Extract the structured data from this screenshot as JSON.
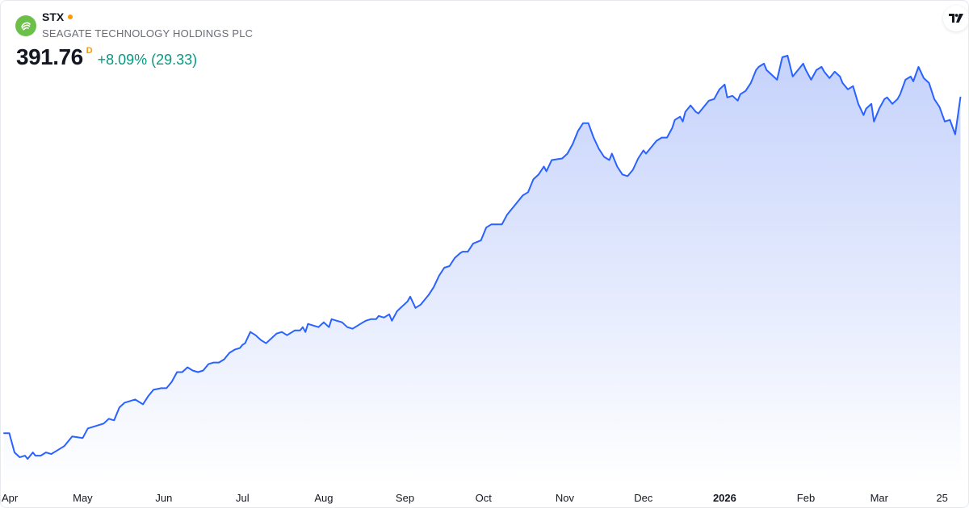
{
  "header": {
    "ticker": "STX",
    "company": "SEAGATE TECHNOLOGY HOLDINGS PLC",
    "price": "391.76",
    "interval": "D",
    "change": "+8.09% (29.33)"
  },
  "icons": {
    "logo": "seagate-logo-icon",
    "brand": "tradingview-logo-icon"
  },
  "colors": {
    "line": "#2962ff",
    "fill_top": "#c5d2fb",
    "fill_bottom": "#ffffff",
    "up": "#089981",
    "status_dot": "#ff9800",
    "logo_bg": "#6cc04a"
  },
  "chart_data": {
    "type": "area",
    "title": "",
    "xlabel": "",
    "ylabel": "",
    "y_axis_shown": false,
    "grid": false,
    "ylim": [
      60,
      330
    ],
    "x_start": "2025-04-01",
    "x_ticks": [
      {
        "label": "Apr",
        "day": 0
      },
      {
        "label": "May",
        "day": 30
      },
      {
        "label": "Jun",
        "day": 61
      },
      {
        "label": "Jul",
        "day": 91
      },
      {
        "label": "Aug",
        "day": 122
      },
      {
        "label": "Sep",
        "day": 153
      },
      {
        "label": "Oct",
        "day": 183
      },
      {
        "label": "Nov",
        "day": 214
      },
      {
        "label": "Dec",
        "day": 244
      },
      {
        "label": "2026",
        "day": 275,
        "bold": true
      },
      {
        "label": "Feb",
        "day": 306
      },
      {
        "label": "Mar",
        "day": 334
      },
      {
        "label": "25",
        "day": 358
      }
    ],
    "series": [
      {
        "points": [
          [
            0,
            92
          ],
          [
            2,
            92
          ],
          [
            4,
            80
          ],
          [
            6,
            77
          ],
          [
            8,
            78
          ],
          [
            9,
            76
          ],
          [
            11,
            80
          ],
          [
            12,
            78
          ],
          [
            14,
            78
          ],
          [
            16,
            80
          ],
          [
            18,
            79
          ],
          [
            20,
            81
          ],
          [
            22,
            83
          ],
          [
            23,
            84
          ],
          [
            26,
            90
          ],
          [
            30,
            89
          ],
          [
            32,
            95
          ],
          [
            34,
            96
          ],
          [
            36,
            97
          ],
          [
            38,
            98
          ],
          [
            40,
            101
          ],
          [
            42,
            100
          ],
          [
            44,
            108
          ],
          [
            46,
            111
          ],
          [
            50,
            113
          ],
          [
            53,
            110
          ],
          [
            55,
            115
          ],
          [
            57,
            119
          ],
          [
            60,
            120
          ],
          [
            62,
            120
          ],
          [
            64,
            124
          ],
          [
            66,
            130
          ],
          [
            68,
            130
          ],
          [
            70,
            133
          ],
          [
            72,
            131
          ],
          [
            74,
            130
          ],
          [
            76,
            131
          ],
          [
            78,
            135
          ],
          [
            80,
            136
          ],
          [
            82,
            136
          ],
          [
            84,
            138
          ],
          [
            86,
            142
          ],
          [
            88,
            144
          ],
          [
            90,
            145
          ],
          [
            91,
            147
          ],
          [
            92,
            148
          ],
          [
            94,
            155
          ],
          [
            96,
            153
          ],
          [
            98,
            150
          ],
          [
            100,
            148
          ],
          [
            102,
            151
          ],
          [
            104,
            154
          ],
          [
            106,
            155
          ],
          [
            108,
            153
          ],
          [
            111,
            156
          ],
          [
            113,
            156
          ],
          [
            114,
            158
          ],
          [
            115,
            155
          ],
          [
            116,
            160
          ],
          [
            120,
            158
          ],
          [
            122,
            161
          ],
          [
            124,
            158
          ],
          [
            125,
            163
          ],
          [
            127,
            162
          ],
          [
            129,
            161
          ],
          [
            131,
            158
          ],
          [
            133,
            157
          ],
          [
            135,
            159
          ],
          [
            136,
            160
          ],
          [
            138,
            162
          ],
          [
            140,
            163
          ],
          [
            142,
            163
          ],
          [
            143,
            165
          ],
          [
            145,
            164
          ],
          [
            147,
            166
          ],
          [
            148,
            162
          ],
          [
            150,
            168
          ],
          [
            152,
            171
          ],
          [
            154,
            174
          ],
          [
            155,
            177
          ],
          [
            157,
            170
          ],
          [
            159,
            172
          ],
          [
            162,
            178
          ],
          [
            164,
            183
          ],
          [
            166,
            190
          ],
          [
            168,
            195
          ],
          [
            170,
            196
          ],
          [
            172,
            201
          ],
          [
            174,
            204
          ],
          [
            175,
            205
          ],
          [
            177,
            205
          ],
          [
            179,
            210
          ],
          [
            182,
            212
          ],
          [
            184,
            220
          ],
          [
            186,
            222
          ],
          [
            188,
            222
          ],
          [
            190,
            222
          ],
          [
            192,
            228
          ],
          [
            194,
            232
          ],
          [
            196,
            236
          ],
          [
            198,
            240
          ],
          [
            200,
            242
          ],
          [
            202,
            250
          ],
          [
            204,
            253
          ],
          [
            206,
            258
          ],
          [
            207,
            255
          ],
          [
            209,
            262
          ],
          [
            213,
            263
          ],
          [
            215,
            266
          ],
          [
            217,
            272
          ],
          [
            219,
            280
          ],
          [
            221,
            285
          ],
          [
            223,
            285
          ],
          [
            225,
            276
          ],
          [
            227,
            269
          ],
          [
            229,
            264
          ],
          [
            231,
            262
          ],
          [
            232,
            266
          ],
          [
            234,
            258
          ],
          [
            236,
            253
          ],
          [
            238,
            252
          ],
          [
            240,
            256
          ],
          [
            242,
            263
          ],
          [
            244,
            268
          ],
          [
            245,
            266
          ],
          [
            247,
            270
          ],
          [
            249,
            274
          ],
          [
            251,
            276
          ],
          [
            253,
            276
          ],
          [
            255,
            282
          ],
          [
            256,
            287
          ],
          [
            258,
            289
          ],
          [
            259,
            286
          ],
          [
            260,
            292
          ],
          [
            262,
            296
          ],
          [
            264,
            292
          ],
          [
            265,
            291
          ],
          [
            267,
            295
          ],
          [
            269,
            299
          ],
          [
            271,
            300
          ],
          [
            273,
            306
          ],
          [
            275,
            309
          ],
          [
            276,
            301
          ],
          [
            278,
            302
          ],
          [
            280,
            299
          ],
          [
            281,
            303
          ],
          [
            283,
            305
          ],
          [
            285,
            310
          ],
          [
            287,
            318
          ],
          [
            288,
            320
          ],
          [
            290,
            322
          ],
          [
            291,
            318
          ],
          [
            293,
            315
          ],
          [
            295,
            312
          ],
          [
            297,
            326
          ],
          [
            299,
            327
          ],
          [
            301,
            314
          ],
          [
            303,
            318
          ],
          [
            305,
            322
          ],
          [
            306,
            318
          ],
          [
            308,
            312
          ],
          [
            310,
            318
          ],
          [
            312,
            320
          ],
          [
            313,
            317
          ],
          [
            315,
            313
          ],
          [
            317,
            317
          ],
          [
            319,
            314
          ],
          [
            320,
            310
          ],
          [
            322,
            306
          ],
          [
            324,
            308
          ],
          [
            326,
            297
          ],
          [
            328,
            290
          ],
          [
            329,
            294
          ],
          [
            331,
            297
          ],
          [
            332,
            286
          ],
          [
            334,
            294
          ],
          [
            336,
            300
          ],
          [
            337,
            301
          ],
          [
            339,
            297
          ],
          [
            341,
            300
          ],
          [
            342,
            303
          ],
          [
            344,
            312
          ],
          [
            346,
            314
          ],
          [
            347,
            311
          ],
          [
            349,
            320
          ],
          [
            351,
            313
          ],
          [
            353,
            310
          ],
          [
            355,
            300
          ],
          [
            357,
            295
          ],
          [
            359,
            286
          ],
          [
            361,
            287
          ],
          [
            363,
            278
          ],
          [
            365,
            301
          ]
        ]
      }
    ]
  }
}
